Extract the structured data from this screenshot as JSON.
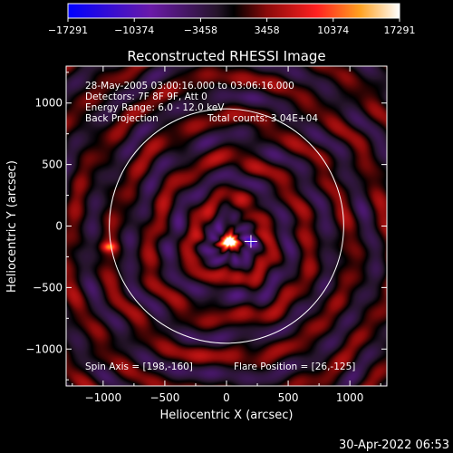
{
  "chart_data": {
    "type": "heatmap",
    "title": "Reconstructed RHESSI Image",
    "xlabel": "Heliocentric X (arcsec)",
    "ylabel": "Heliocentric Y (arcsec)",
    "xlim": [
      -1300,
      1300
    ],
    "ylim": [
      -1300,
      1300
    ],
    "xticks": [
      -1000,
      -500,
      0,
      500,
      1000
    ],
    "yticks": [
      -1000,
      -500,
      0,
      500,
      1000
    ],
    "xtick_labels": [
      "−1000",
      "−500",
      "0",
      "500",
      "1000"
    ],
    "ytick_labels": [
      "−1000",
      "−500",
      "0",
      "500",
      "1000"
    ],
    "colorbar": {
      "ticks": [
        -17291,
        -10374,
        -3458,
        3458,
        10374,
        17291
      ],
      "tick_labels": [
        "−17291",
        "−10374",
        "−3458",
        "3458",
        "10374",
        "17291"
      ]
    },
    "info_lines": [
      "28-May-2005 03:00:16.000 to 03:06:16.000",
      "Detectors: 7F 8F 9F, Att 0",
      "Energy Range: 6.0 - 12.0 keV"
    ],
    "projection": "Back Projection",
    "total_counts": "Total counts: 3.04E+04",
    "spin_axis": "Spin Axis = [198,-160]",
    "flare_position": "Flare Position = [26,-125]",
    "flare": {
      "x": 26,
      "y": -125
    },
    "spin_center": {
      "x": 198,
      "y": -160
    },
    "secondary_source": {
      "x": -950,
      "y": -170
    },
    "solar_limb_radius": 950
  },
  "footer": {
    "timestamp": "30-Apr-2022 06:53"
  }
}
